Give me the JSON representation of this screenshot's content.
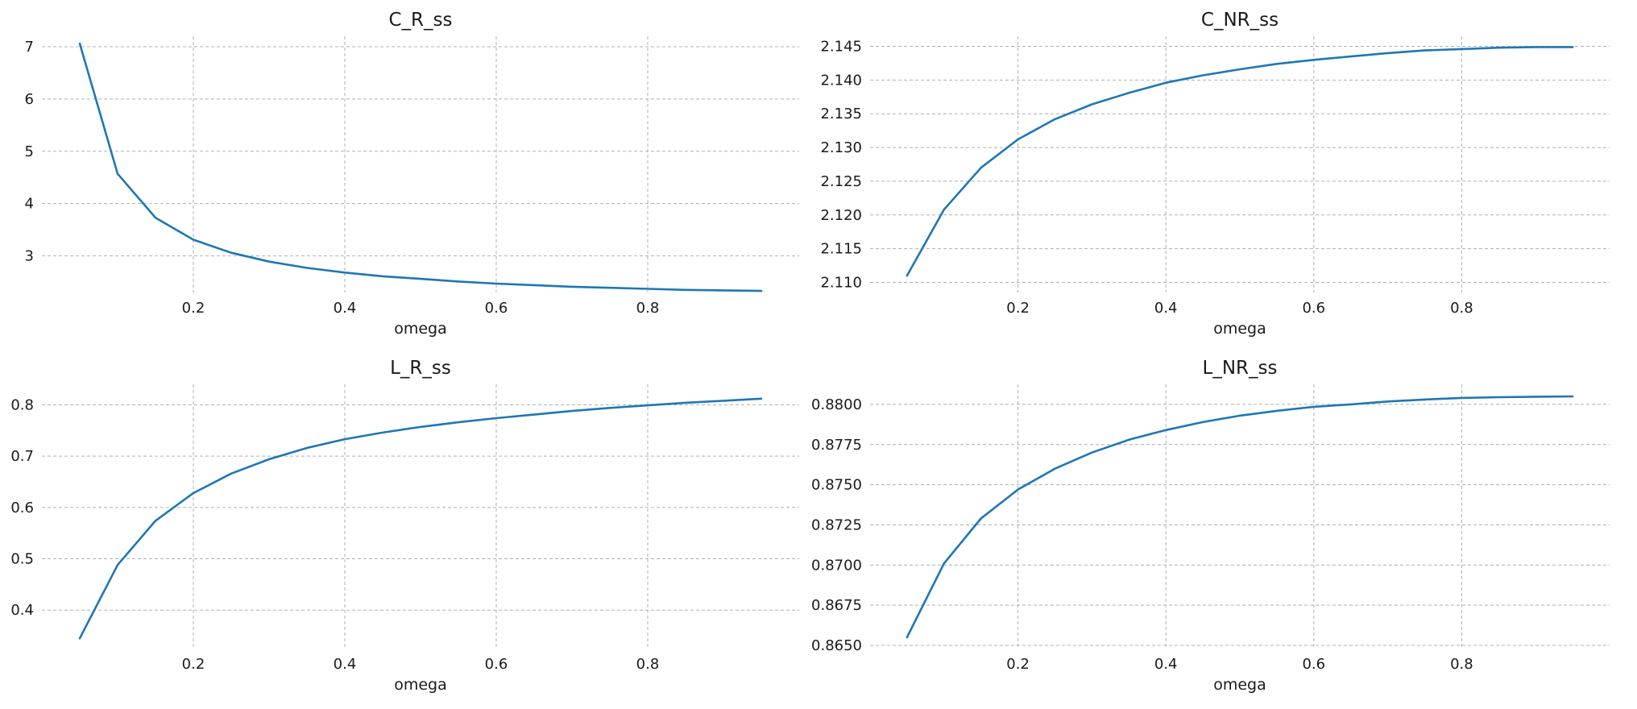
{
  "colors": {
    "series": "#1f77b4",
    "grid": "#b0b0b0",
    "text": "#1a1a1a"
  },
  "chart_data": [
    {
      "type": "line",
      "title": "C_R_ss",
      "xlabel": "omega",
      "ylabel": "",
      "grid": true,
      "xlim": [
        0.0,
        1.0
      ],
      "ylim": [
        2.3,
        7.2
      ],
      "xticks": [
        0.2,
        0.4,
        0.6,
        0.8
      ],
      "xtick_labels": [
        "0.2",
        "0.4",
        "0.6",
        "0.8"
      ],
      "yticks": [
        3,
        4,
        5,
        6,
        7
      ],
      "ytick_labels": [
        "3",
        "4",
        "5",
        "6",
        "7"
      ],
      "series": [
        {
          "x": [
            0.05,
            0.1,
            0.15,
            0.2,
            0.25,
            0.3,
            0.35,
            0.4,
            0.45,
            0.5,
            0.55,
            0.6,
            0.65,
            0.7,
            0.75,
            0.8,
            0.85,
            0.9,
            0.95
          ],
          "y": [
            7.06,
            4.57,
            3.73,
            3.31,
            3.06,
            2.89,
            2.77,
            2.68,
            2.61,
            2.56,
            2.51,
            2.47,
            2.44,
            2.41,
            2.39,
            2.37,
            2.35,
            2.34,
            2.33
          ]
        }
      ]
    },
    {
      "type": "line",
      "title": "C_NR_ss",
      "xlabel": "omega",
      "ylabel": "",
      "grid": true,
      "xlim": [
        0.0,
        1.0
      ],
      "ylim": [
        2.1085,
        2.1465
      ],
      "xticks": [
        0.2,
        0.4,
        0.6,
        0.8
      ],
      "xtick_labels": [
        "0.2",
        "0.4",
        "0.6",
        "0.8"
      ],
      "yticks": [
        2.11,
        2.115,
        2.12,
        2.125,
        2.13,
        2.135,
        2.14,
        2.145
      ],
      "ytick_labels": [
        "2.110",
        "2.115",
        "2.120",
        "2.125",
        "2.130",
        "2.135",
        "2.140",
        "2.145"
      ],
      "series": [
        {
          "x": [
            0.05,
            0.1,
            0.15,
            0.2,
            0.25,
            0.3,
            0.35,
            0.4,
            0.45,
            0.5,
            0.55,
            0.6,
            0.65,
            0.7,
            0.75,
            0.8,
            0.85,
            0.9,
            0.95
          ],
          "y": [
            2.111,
            2.1208,
            2.127,
            2.1312,
            2.1342,
            2.1364,
            2.1381,
            2.1396,
            2.1407,
            2.1416,
            2.1424,
            2.143,
            2.1435,
            2.144,
            2.1444,
            2.1446,
            2.1448,
            2.1449,
            2.1449
          ]
        }
      ]
    },
    {
      "type": "line",
      "title": "L_R_ss",
      "xlabel": "omega",
      "ylabel": "",
      "grid": true,
      "xlim": [
        0.0,
        1.0
      ],
      "ylim": [
        0.325,
        0.84
      ],
      "xticks": [
        0.2,
        0.4,
        0.6,
        0.8
      ],
      "xtick_labels": [
        "0.2",
        "0.4",
        "0.6",
        "0.8"
      ],
      "yticks": [
        0.4,
        0.5,
        0.6,
        0.7,
        0.8
      ],
      "ytick_labels": [
        "0.4",
        "0.5",
        "0.6",
        "0.7",
        "0.8"
      ],
      "series": [
        {
          "x": [
            0.05,
            0.1,
            0.15,
            0.2,
            0.25,
            0.3,
            0.35,
            0.4,
            0.45,
            0.5,
            0.55,
            0.6,
            0.65,
            0.7,
            0.75,
            0.8,
            0.85,
            0.9,
            0.95
          ],
          "y": [
            0.345,
            0.488,
            0.574,
            0.628,
            0.666,
            0.694,
            0.716,
            0.733,
            0.746,
            0.757,
            0.766,
            0.774,
            0.781,
            0.788,
            0.794,
            0.799,
            0.804,
            0.808,
            0.812
          ]
        }
      ]
    },
    {
      "type": "line",
      "title": "L_NR_ss",
      "xlabel": "omega",
      "ylabel": "",
      "grid": true,
      "xlim": [
        0.0,
        1.0
      ],
      "ylim": [
        0.8648,
        0.88125
      ],
      "xticks": [
        0.2,
        0.4,
        0.6,
        0.8
      ],
      "xtick_labels": [
        "0.2",
        "0.4",
        "0.6",
        "0.8"
      ],
      "yticks": [
        0.865,
        0.8675,
        0.87,
        0.8725,
        0.875,
        0.8775,
        0.88
      ],
      "ytick_labels": [
        "0.8650",
        "0.8675",
        "0.8700",
        "0.8725",
        "0.8750",
        "0.8775",
        "0.8800"
      ],
      "series": [
        {
          "x": [
            0.05,
            0.1,
            0.15,
            0.2,
            0.25,
            0.3,
            0.35,
            0.4,
            0.45,
            0.5,
            0.55,
            0.6,
            0.65,
            0.7,
            0.75,
            0.8,
            0.85,
            0.9,
            0.95
          ],
          "y": [
            0.8655,
            0.8701,
            0.8729,
            0.8747,
            0.876,
            0.877,
            0.8778,
            0.8784,
            0.8789,
            0.8793,
            0.8796,
            0.87985,
            0.88,
            0.88018,
            0.8803,
            0.8804,
            0.88045,
            0.88048,
            0.8805
          ]
        }
      ]
    }
  ]
}
